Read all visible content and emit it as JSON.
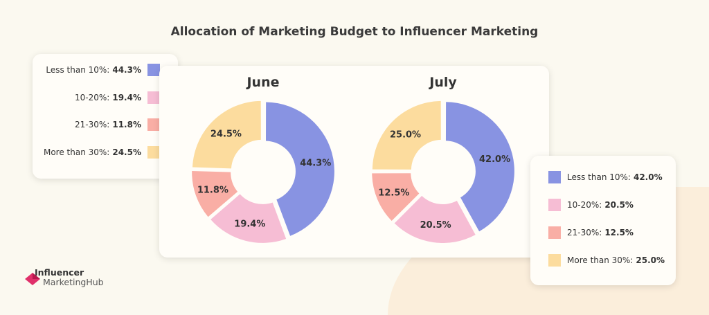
{
  "chart_data": [
    {
      "type": "pie",
      "donut": true,
      "title": "June",
      "categories": [
        "Less than 10%",
        "10-20%",
        "21-30%",
        "More than 30%"
      ],
      "values": [
        44.3,
        19.4,
        11.8,
        24.5
      ],
      "labels": [
        "44.3%",
        "19.4%",
        "11.8%",
        "24.5%"
      ]
    },
    {
      "type": "pie",
      "donut": true,
      "title": "July",
      "categories": [
        "Less than 10%",
        "10-20%",
        "21-30%",
        "More than 30%"
      ],
      "values": [
        42.0,
        20.5,
        12.5,
        25.0
      ],
      "labels": [
        "42.0%",
        "20.5%",
        "12.5%",
        "25.0%"
      ]
    }
  ],
  "title": "Allocation of Marketing Budget to Influencer Marketing",
  "colors": [
    "#8893e2",
    "#f6bdd4",
    "#f9aea5",
    "#fcdc9e"
  ],
  "legend_june": [
    {
      "label": "Less than 10%:",
      "value": "44.3%"
    },
    {
      "label": "10-20%:",
      "value": "19.4%"
    },
    {
      "label": "21-30%:",
      "value": "11.8%"
    },
    {
      "label": "More than 30%:",
      "value": "24.5%"
    }
  ],
  "legend_july": [
    {
      "label": "Less than 10%:",
      "value": "42.0%"
    },
    {
      "label": "10-20%:",
      "value": "20.5%"
    },
    {
      "label": "21-30%:",
      "value": "12.5%"
    },
    {
      "label": "More than 30%:",
      "value": "25.0%"
    }
  ],
  "logo": {
    "line1": "Influencer",
    "line2": "MarketingHub"
  }
}
